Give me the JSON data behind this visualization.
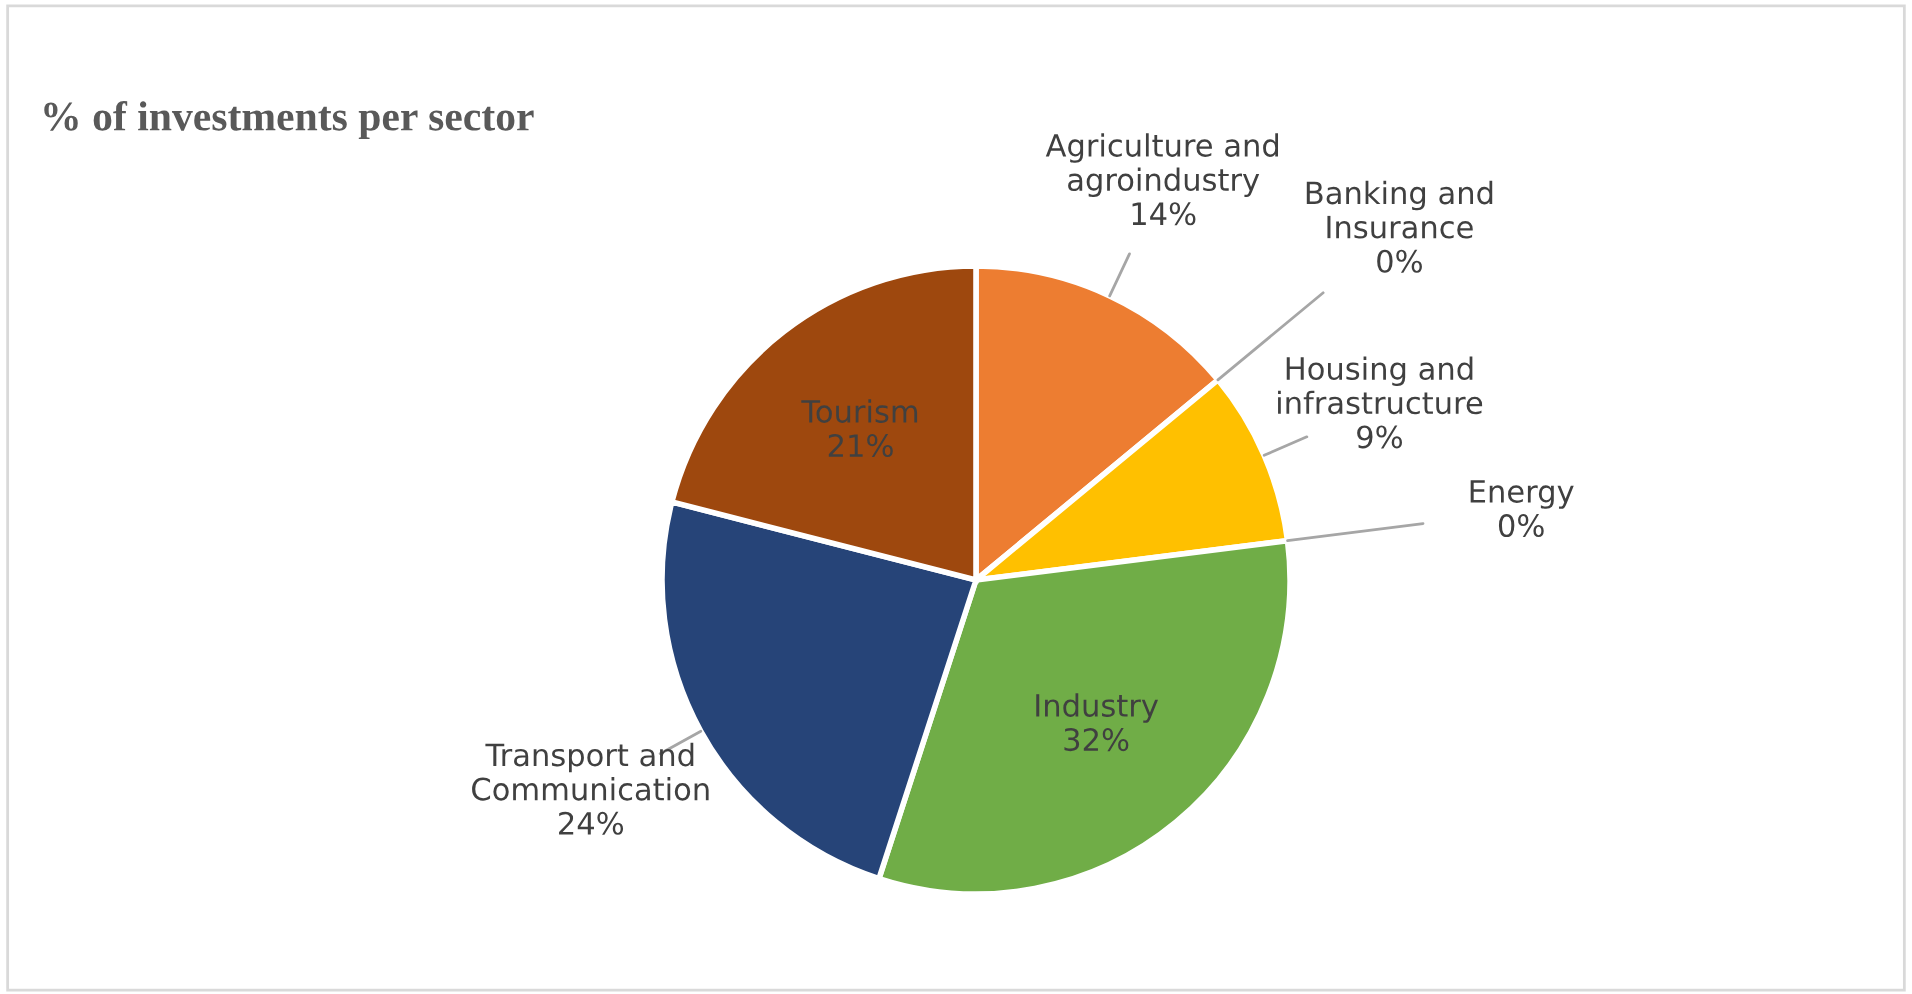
{
  "chart_data": {
    "type": "pie",
    "title": "% of investments per sector",
    "categories": [
      "Agriculture and agroindustry",
      "Banking and Insurance",
      "Housing and infrastructure",
      "Energy",
      "Industry",
      "Transport and Communication",
      "Tourism"
    ],
    "values": [
      14,
      0,
      9,
      0,
      32,
      24,
      21
    ],
    "colors": [
      "#ed7d31",
      "#a5a5a5",
      "#ffc000",
      "#5b9bd5",
      "#70ad47",
      "#264478",
      "#9e480e"
    ],
    "value_labels": [
      "14%",
      "0%",
      "9%",
      "0%",
      "32%",
      "24%",
      "21%"
    ]
  }
}
